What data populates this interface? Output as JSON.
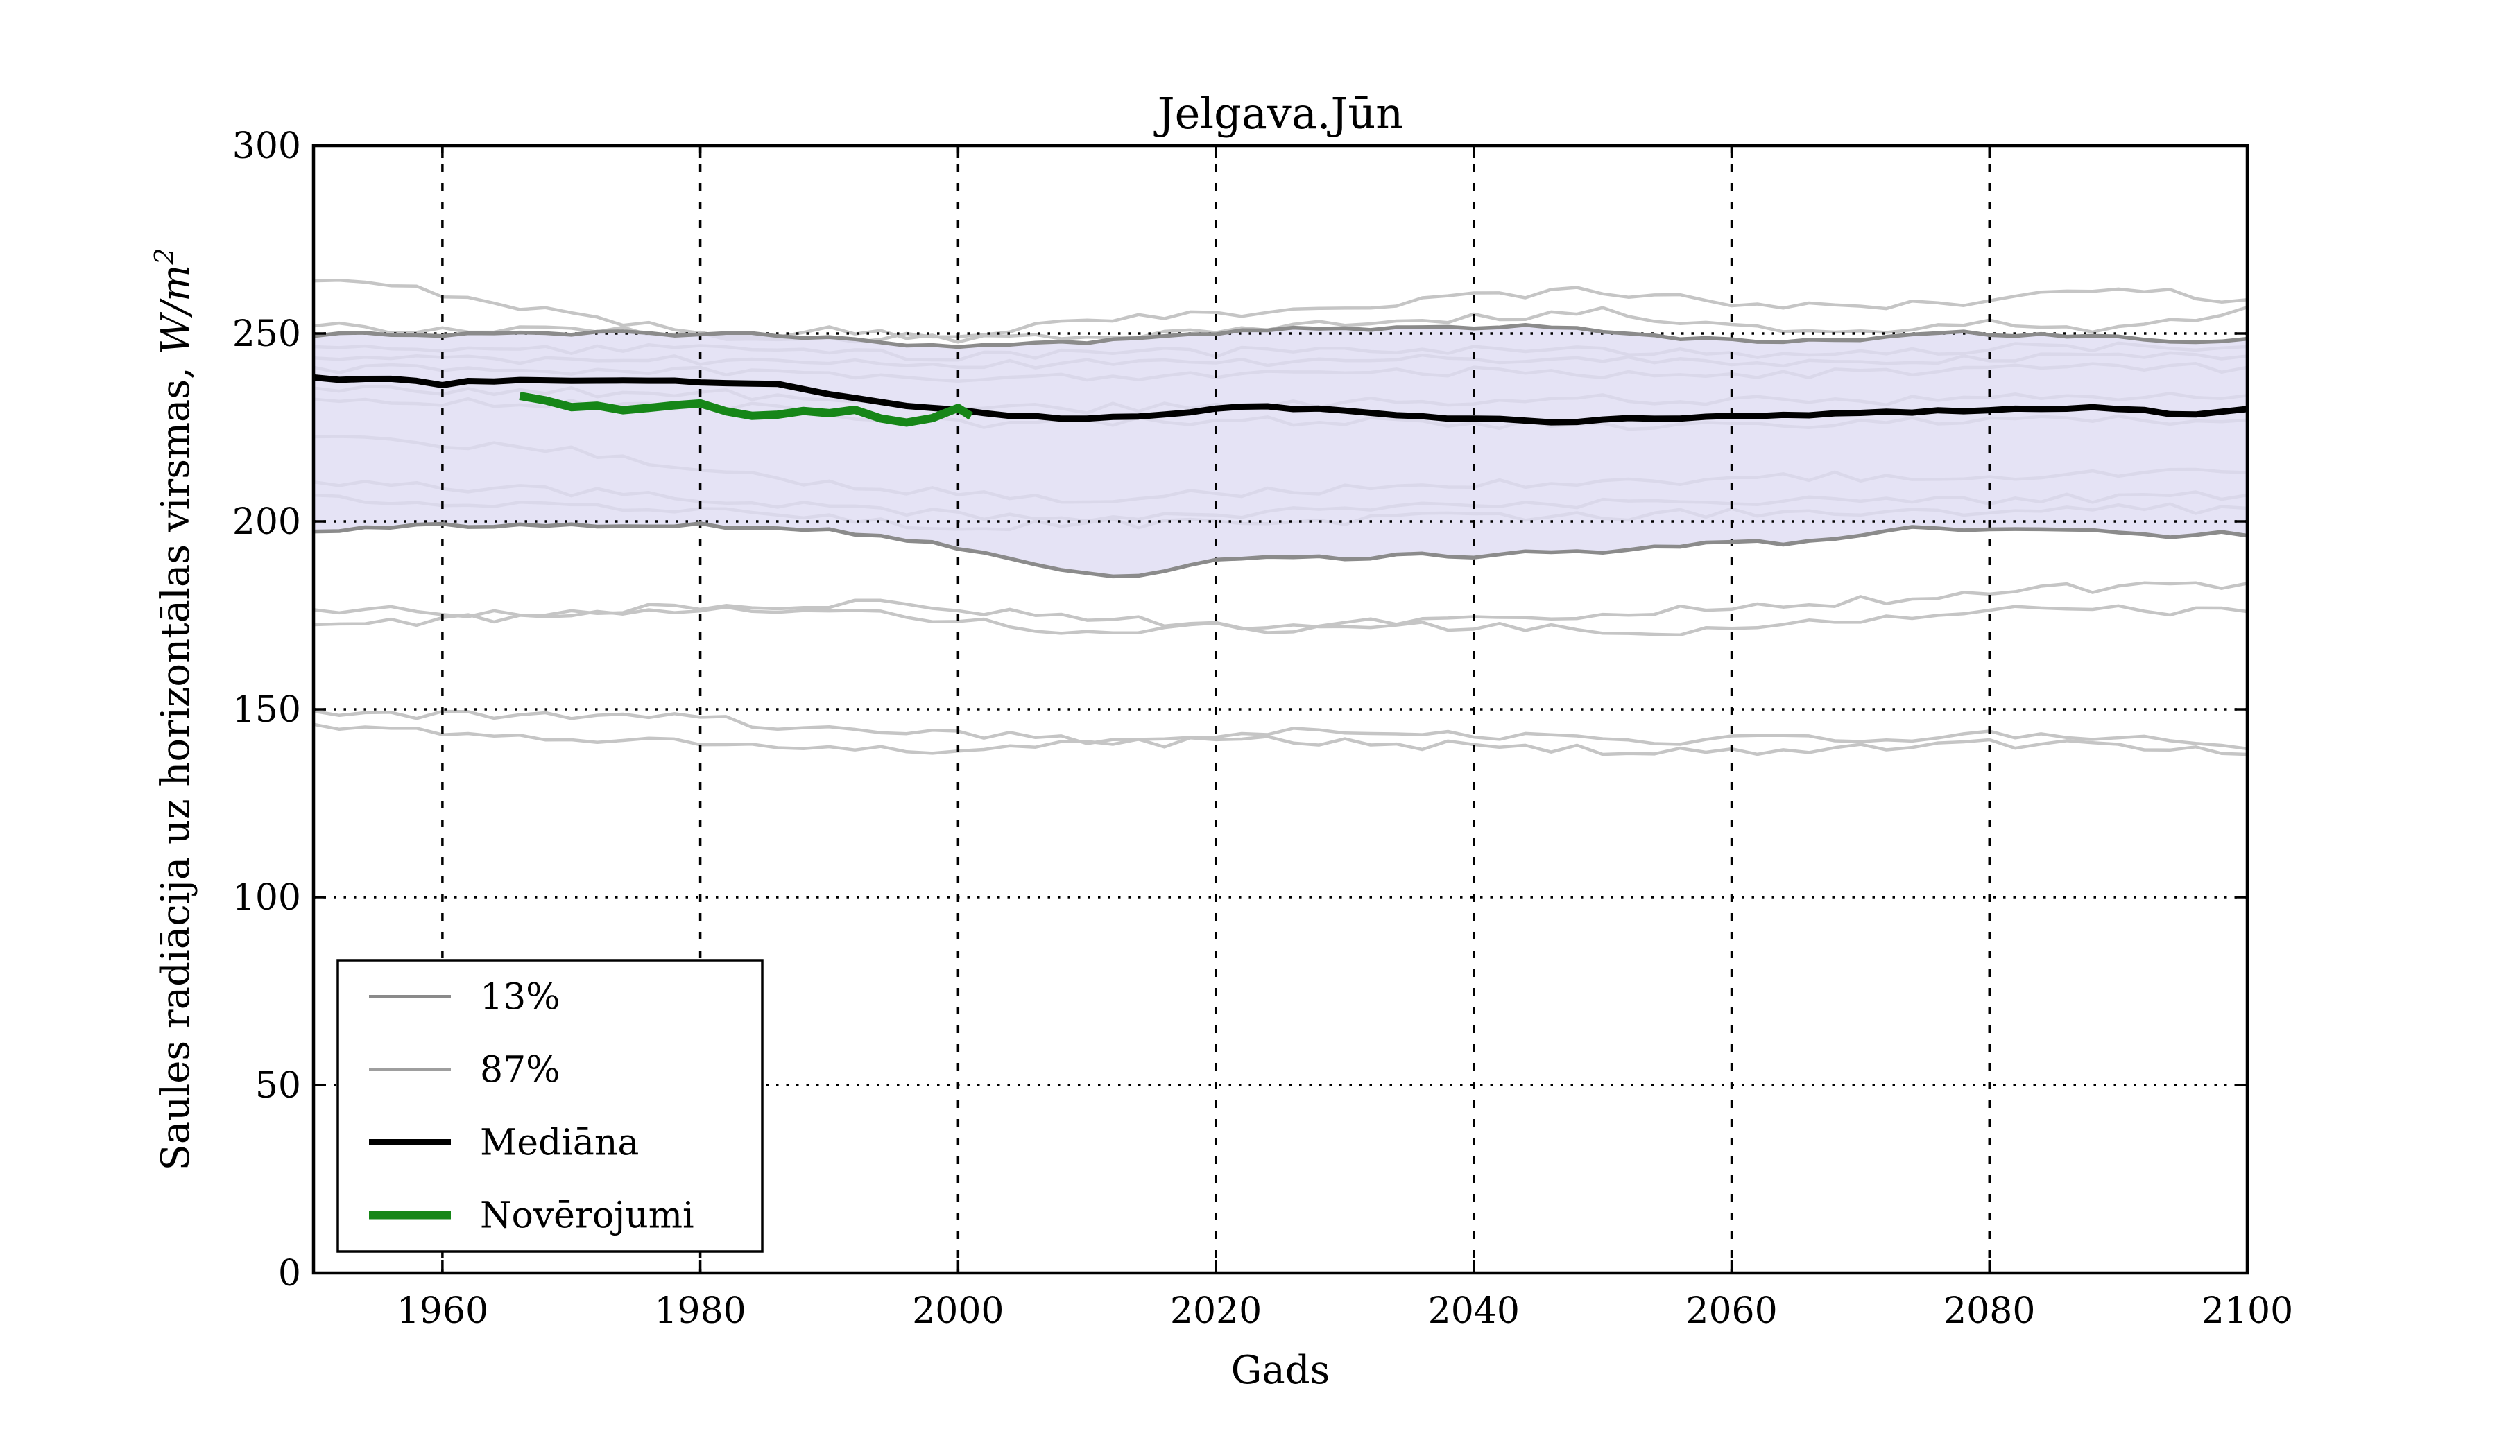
{
  "title": "Jelgava.Jūn",
  "axes": {
    "xlabel": "Gads",
    "ylabel_prefix": "Saules radiācija uz horizontālas virsmas, ",
    "ylabel_math": "W/m",
    "ylabel_exponent": "2",
    "x_ticks": [
      1960,
      1980,
      2000,
      2020,
      2040,
      2060,
      2080,
      2100
    ],
    "y_ticks": [
      0,
      50,
      100,
      150,
      200,
      250,
      300
    ],
    "xlim": [
      1950,
      2100
    ],
    "ylim": [
      0,
      300
    ],
    "grid": "dotted"
  },
  "legend": {
    "items": [
      {
        "label": "13%",
        "color": "#8a8a8a",
        "width": 5
      },
      {
        "label": "87%",
        "color": "#9e9e9e",
        "width": 5
      },
      {
        "label": "Mediāna",
        "color": "#000000",
        "width": 9
      },
      {
        "label": "Novērojumi",
        "color": "#168618",
        "width": 12
      }
    ]
  },
  "colors": {
    "band_fill": "#dedcf3",
    "band_edge": "#8b8b8b",
    "ensemble": "#c5c5c5",
    "median": "#000000",
    "observations": "#168618",
    "grid": "#000000",
    "frame": "#000000",
    "background": "#ffffff"
  },
  "chart_data": {
    "type": "line",
    "title": "Jelgava.Jūn",
    "xlabel": "Gads",
    "ylabel": "Saules radiācija uz horizontālas virsmas, W/m2",
    "xlim": [
      1950,
      2100
    ],
    "ylim": [
      0,
      300
    ],
    "legend_position": "lower-left",
    "series": [
      {
        "name": "Mediāna",
        "points": [
          [
            1950,
            238.3
          ],
          [
            1953,
            237.6
          ],
          [
            1956,
            237.9
          ],
          [
            1960,
            236.6
          ],
          [
            1963,
            237.4
          ],
          [
            1966,
            237.9
          ],
          [
            1970,
            237.3
          ],
          [
            1974,
            237.8
          ],
          [
            1978,
            237.3
          ],
          [
            1982,
            237.0
          ],
          [
            1986,
            236.4
          ],
          [
            1990,
            234.0
          ],
          [
            1994,
            231.6
          ],
          [
            1998,
            230.0
          ],
          [
            2002,
            228.8
          ],
          [
            2006,
            227.7
          ],
          [
            2010,
            227.4
          ],
          [
            2014,
            228.0
          ],
          [
            2018,
            229.2
          ],
          [
            2022,
            230.6
          ],
          [
            2026,
            230.1
          ],
          [
            2030,
            229.5
          ],
          [
            2034,
            228.1
          ],
          [
            2038,
            227.5
          ],
          [
            2042,
            227.1
          ],
          [
            2046,
            226.6
          ],
          [
            2050,
            227.0
          ],
          [
            2054,
            227.3
          ],
          [
            2058,
            227.7
          ],
          [
            2062,
            228.0
          ],
          [
            2066,
            228.4
          ],
          [
            2070,
            228.8
          ],
          [
            2074,
            229.2
          ],
          [
            2078,
            229.6
          ],
          [
            2082,
            229.9
          ],
          [
            2086,
            230.1
          ],
          [
            2090,
            230.2
          ],
          [
            2093,
            229.1
          ],
          [
            2096,
            228.4
          ],
          [
            2100,
            229.9
          ]
        ]
      },
      {
        "name": "Novērojumi",
        "points": [
          [
            1966,
            233.4
          ],
          [
            1968,
            232.2
          ],
          [
            1970,
            230.4
          ],
          [
            1972,
            230.8
          ],
          [
            1974,
            229.6
          ],
          [
            1976,
            230.2
          ],
          [
            1978,
            230.9
          ],
          [
            1980,
            231.4
          ],
          [
            1982,
            229.3
          ],
          [
            1984,
            228.1
          ],
          [
            1986,
            228.4
          ],
          [
            1988,
            229.4
          ],
          [
            1990,
            228.8
          ],
          [
            1992,
            229.7
          ],
          [
            1994,
            227.4
          ],
          [
            1996,
            226.3
          ],
          [
            1998,
            227.5
          ],
          [
            2000,
            230.2
          ],
          [
            2001,
            228.0
          ]
        ]
      },
      {
        "name": "87%",
        "points": [
          [
            1950,
            249.3
          ],
          [
            1955,
            250.0
          ],
          [
            1960,
            249.5
          ],
          [
            1965,
            250.2
          ],
          [
            1970,
            249.8
          ],
          [
            1975,
            250.3
          ],
          [
            1980,
            249.6
          ],
          [
            1985,
            249.9
          ],
          [
            1990,
            248.6
          ],
          [
            1995,
            247.2
          ],
          [
            2000,
            246.5
          ],
          [
            2005,
            246.9
          ],
          [
            2010,
            247.6
          ],
          [
            2015,
            249.0
          ],
          [
            2020,
            250.3
          ],
          [
            2025,
            251.3
          ],
          [
            2030,
            251.0
          ],
          [
            2035,
            251.8
          ],
          [
            2040,
            251.5
          ],
          [
            2045,
            252.0
          ],
          [
            2050,
            251.0
          ],
          [
            2055,
            249.0
          ],
          [
            2060,
            248.3
          ],
          [
            2065,
            247.8
          ],
          [
            2070,
            248.7
          ],
          [
            2075,
            250.3
          ],
          [
            2080,
            250.0
          ],
          [
            2085,
            249.6
          ],
          [
            2090,
            249.3
          ],
          [
            2095,
            248.0
          ],
          [
            2100,
            248.6
          ]
        ]
      },
      {
        "name": "13%",
        "points": [
          [
            1950,
            197.3
          ],
          [
            1955,
            198.2
          ],
          [
            1960,
            199.3
          ],
          [
            1965,
            198.6
          ],
          [
            1970,
            198.9
          ],
          [
            1975,
            198.3
          ],
          [
            1980,
            199.0
          ],
          [
            1985,
            198.2
          ],
          [
            1990,
            197.6
          ],
          [
            1995,
            195.8
          ],
          [
            2000,
            193.0
          ],
          [
            2005,
            188.8
          ],
          [
            2010,
            185.8
          ],
          [
            2013,
            185.2
          ],
          [
            2016,
            187.0
          ],
          [
            2020,
            189.3
          ],
          [
            2025,
            190.6
          ],
          [
            2030,
            190.0
          ],
          [
            2035,
            191.2
          ],
          [
            2040,
            190.6
          ],
          [
            2045,
            192.2
          ],
          [
            2050,
            191.8
          ],
          [
            2055,
            193.2
          ],
          [
            2060,
            194.6
          ],
          [
            2065,
            193.8
          ],
          [
            2070,
            196.4
          ],
          [
            2075,
            198.4
          ],
          [
            2080,
            198.0
          ],
          [
            2085,
            197.6
          ],
          [
            2090,
            197.2
          ],
          [
            2094,
            195.8
          ],
          [
            2097,
            197.3
          ],
          [
            2100,
            196.2
          ]
        ]
      }
    ],
    "ensemble_members": [
      {
        "points": [
          [
            1950,
            264
          ],
          [
            1960,
            261
          ],
          [
            1970,
            255
          ],
          [
            1980,
            250
          ],
          [
            1990,
            248
          ],
          [
            2000,
            250
          ],
          [
            2010,
            253
          ],
          [
            2020,
            255
          ],
          [
            2030,
            257.5
          ],
          [
            2040,
            260
          ],
          [
            2050,
            261.5
          ],
          [
            2060,
            258
          ],
          [
            2070,
            257
          ],
          [
            2080,
            259
          ],
          [
            2090,
            262
          ],
          [
            2100,
            259
          ]
        ]
      },
      {
        "points": [
          [
            1950,
            252
          ],
          [
            1960,
            250.5
          ],
          [
            1970,
            251
          ],
          [
            1980,
            249.5
          ],
          [
            1990,
            250.5
          ],
          [
            2000,
            248.5
          ],
          [
            2010,
            249
          ],
          [
            2020,
            251.5
          ],
          [
            2030,
            253
          ],
          [
            2040,
            254
          ],
          [
            2050,
            256
          ],
          [
            2060,
            252
          ],
          [
            2070,
            250
          ],
          [
            2080,
            252.5
          ],
          [
            2090,
            251
          ],
          [
            2100,
            257
          ]
        ]
      },
      {
        "points": [
          [
            1950,
            246.5
          ],
          [
            1965,
            245.5
          ],
          [
            1980,
            245.8
          ],
          [
            2000,
            244
          ],
          [
            2020,
            245
          ],
          [
            2040,
            246
          ],
          [
            2060,
            244.5
          ],
          [
            2080,
            246
          ],
          [
            2100,
            246.5
          ]
        ]
      },
      {
        "points": [
          [
            1950,
            243.5
          ],
          [
            1965,
            242.5
          ],
          [
            1980,
            243
          ],
          [
            2000,
            241.5
          ],
          [
            2020,
            242.5
          ],
          [
            2040,
            243.5
          ],
          [
            2060,
            242
          ],
          [
            2080,
            243.5
          ],
          [
            2100,
            244
          ]
        ]
      },
      {
        "points": [
          [
            1950,
            241
          ],
          [
            1965,
            239.5
          ],
          [
            1980,
            240
          ],
          [
            2000,
            238
          ],
          [
            2020,
            239
          ],
          [
            2040,
            240
          ],
          [
            2060,
            238.5
          ],
          [
            2080,
            240.5
          ],
          [
            2100,
            241
          ]
        ]
      },
      {
        "points": [
          [
            1950,
            235.5
          ],
          [
            1965,
            234.5
          ],
          [
            1980,
            234
          ],
          [
            1990,
            233
          ],
          [
            2000,
            231
          ],
          [
            2010,
            230
          ],
          [
            2030,
            231.5
          ],
          [
            2050,
            232.5
          ],
          [
            2070,
            232
          ],
          [
            2085,
            233
          ],
          [
            2100,
            233.5
          ]
        ]
      },
      {
        "points": [
          [
            1950,
            232.5
          ],
          [
            1965,
            231.5
          ],
          [
            1980,
            231
          ],
          [
            1990,
            229
          ],
          [
            2000,
            226
          ],
          [
            2015,
            226.5
          ],
          [
            2030,
            227
          ],
          [
            2045,
            225.5
          ],
          [
            2060,
            226
          ],
          [
            2075,
            226.5
          ],
          [
            2090,
            227
          ],
          [
            2100,
            227
          ]
        ]
      },
      {
        "points": [
          [
            1950,
            222.5
          ],
          [
            1960,
            220.5
          ],
          [
            1970,
            218.5
          ],
          [
            1980,
            214.5
          ],
          [
            1990,
            210
          ],
          [
            2000,
            207.5
          ],
          [
            2010,
            206
          ],
          [
            2025,
            208
          ],
          [
            2040,
            210
          ],
          [
            2055,
            211
          ],
          [
            2070,
            212
          ],
          [
            2085,
            212.5
          ],
          [
            2100,
            213
          ]
        ]
      },
      {
        "points": [
          [
            1950,
            210.5
          ],
          [
            1960,
            209
          ],
          [
            1970,
            208
          ],
          [
            1980,
            206
          ],
          [
            1990,
            204
          ],
          [
            2000,
            202
          ],
          [
            2010,
            200.5
          ],
          [
            2025,
            202.5
          ],
          [
            2040,
            204
          ],
          [
            2055,
            205
          ],
          [
            2070,
            205.5
          ],
          [
            2085,
            206
          ],
          [
            2100,
            207
          ]
        ]
      },
      {
        "points": [
          [
            1950,
            207
          ],
          [
            1962,
            205
          ],
          [
            1975,
            204
          ],
          [
            1988,
            201
          ],
          [
            2000,
            198.5
          ],
          [
            2012,
            199.5
          ],
          [
            2025,
            200
          ],
          [
            2038,
            201
          ],
          [
            2050,
            201.5
          ],
          [
            2065,
            202.5
          ],
          [
            2080,
            203
          ],
          [
            2100,
            203.5
          ]
        ]
      },
      {
        "points": [
          [
            1950,
            176.5
          ],
          [
            1965,
            175.5
          ],
          [
            1980,
            177
          ],
          [
            1995,
            178.5
          ],
          [
            2010,
            174
          ],
          [
            2025,
            171.5
          ],
          [
            2040,
            174.5
          ],
          [
            2055,
            176
          ],
          [
            2070,
            179
          ],
          [
            2085,
            182
          ],
          [
            2100,
            183.5
          ]
        ]
      },
      {
        "points": [
          [
            1950,
            172.5
          ],
          [
            1965,
            174.5
          ],
          [
            1980,
            176.5
          ],
          [
            1995,
            175.5
          ],
          [
            2010,
            170.5
          ],
          [
            2025,
            173
          ],
          [
            2040,
            172
          ],
          [
            2055,
            170
          ],
          [
            2070,
            173.5
          ],
          [
            2085,
            177
          ],
          [
            2100,
            176
          ]
        ]
      },
      {
        "points": [
          [
            1950,
            149.5
          ],
          [
            1965,
            148
          ],
          [
            1980,
            147.5
          ],
          [
            1995,
            143.5
          ],
          [
            2010,
            142
          ],
          [
            2025,
            144
          ],
          [
            2040,
            143
          ],
          [
            2055,
            141.5
          ],
          [
            2070,
            142.5
          ],
          [
            2085,
            143.5
          ],
          [
            2100,
            139.5
          ]
        ]
      },
      {
        "points": [
          [
            1950,
            146
          ],
          [
            1965,
            143.5
          ],
          [
            1980,
            141
          ],
          [
            1995,
            139
          ],
          [
            2010,
            140.5
          ],
          [
            2025,
            142
          ],
          [
            2040,
            140
          ],
          [
            2055,
            138.5
          ],
          [
            2070,
            140
          ],
          [
            2085,
            141
          ],
          [
            2100,
            138
          ]
        ]
      }
    ]
  }
}
